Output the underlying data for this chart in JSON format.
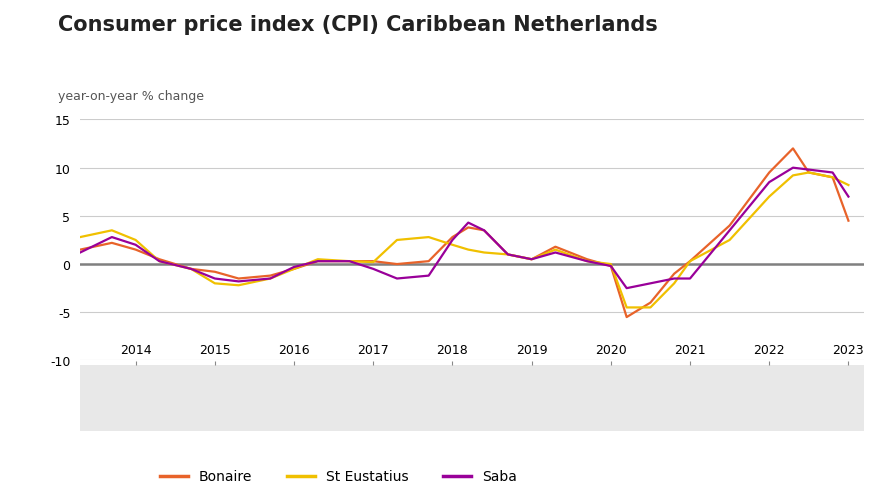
{
  "title": "Consumer price index (CPI) Caribbean Netherlands",
  "subtitle": "year-on-year % change",
  "ylim": [
    -10,
    15
  ],
  "yticks": [
    -10,
    -5,
    0,
    5,
    10,
    15
  ],
  "background_color": "#ffffff",
  "plot_bg_color": "#ffffff",
  "footer_bg_color": "#e8e8e8",
  "grid_color": "#cccccc",
  "zero_line_color": "#808080",
  "title_fontsize": 15,
  "subtitle_fontsize": 9,
  "series": {
    "Bonaire": {
      "color": "#e8632a",
      "x": [
        2013.3,
        2013.7,
        2014.0,
        2014.3,
        2014.7,
        2015.0,
        2015.3,
        2015.7,
        2016.0,
        2016.3,
        2016.7,
        2017.0,
        2017.3,
        2017.7,
        2018.0,
        2018.2,
        2018.4,
        2018.7,
        2019.0,
        2019.3,
        2019.7,
        2020.0,
        2020.2,
        2020.5,
        2020.8,
        2021.0,
        2021.5,
        2022.0,
        2022.3,
        2022.5,
        2022.8,
        2023.0
      ],
      "y": [
        1.5,
        2.2,
        1.5,
        0.5,
        -0.5,
        -0.8,
        -1.5,
        -1.2,
        -0.5,
        0.3,
        0.3,
        0.3,
        0.0,
        0.3,
        2.8,
        3.8,
        3.5,
        1.0,
        0.5,
        1.8,
        0.5,
        -0.2,
        -5.5,
        -4.0,
        -1.0,
        0.3,
        4.0,
        9.5,
        12.0,
        9.5,
        9.0,
        4.5
      ]
    },
    "St Eustatius": {
      "color": "#f0c000",
      "x": [
        2013.3,
        2013.7,
        2014.0,
        2014.3,
        2014.7,
        2015.0,
        2015.3,
        2015.7,
        2016.0,
        2016.3,
        2016.7,
        2017.0,
        2017.3,
        2017.7,
        2018.0,
        2018.2,
        2018.4,
        2018.7,
        2019.0,
        2019.3,
        2019.7,
        2020.0,
        2020.2,
        2020.5,
        2020.8,
        2021.0,
        2021.5,
        2022.0,
        2022.3,
        2022.5,
        2022.8,
        2023.0
      ],
      "y": [
        2.8,
        3.5,
        2.5,
        0.3,
        -0.5,
        -2.0,
        -2.2,
        -1.5,
        -0.5,
        0.5,
        0.3,
        0.2,
        2.5,
        2.8,
        2.0,
        1.5,
        1.2,
        1.0,
        0.5,
        1.5,
        0.3,
        0.0,
        -4.5,
        -4.5,
        -2.0,
        0.3,
        2.5,
        7.0,
        9.2,
        9.5,
        9.0,
        8.2
      ]
    },
    "Saba": {
      "color": "#990099",
      "x": [
        2013.3,
        2013.7,
        2014.0,
        2014.3,
        2014.7,
        2015.0,
        2015.3,
        2015.7,
        2016.0,
        2016.3,
        2016.7,
        2017.0,
        2017.3,
        2017.7,
        2018.0,
        2018.2,
        2018.4,
        2018.7,
        2019.0,
        2019.3,
        2019.7,
        2020.0,
        2020.2,
        2020.5,
        2020.8,
        2021.0,
        2021.5,
        2022.0,
        2022.3,
        2022.5,
        2022.8,
        2023.0
      ],
      "y": [
        1.2,
        2.8,
        2.0,
        0.3,
        -0.5,
        -1.5,
        -1.8,
        -1.5,
        -0.3,
        0.3,
        0.3,
        -0.5,
        -1.5,
        -1.2,
        2.5,
        4.3,
        3.5,
        1.0,
        0.5,
        1.2,
        0.3,
        -0.2,
        -2.5,
        -2.0,
        -1.5,
        -1.5,
        3.5,
        8.5,
        10.0,
        9.8,
        9.5,
        7.0
      ]
    }
  },
  "xlim": [
    2013.3,
    2023.2
  ],
  "xtick_positions": [
    2014,
    2015,
    2016,
    2017,
    2018,
    2019,
    2020,
    2021,
    2022,
    2023
  ],
  "xtick_labels": [
    "2014",
    "2015",
    "2016",
    "2017",
    "2018",
    "2019",
    "2020",
    "2021",
    "2022",
    "2023"
  ],
  "legend_labels": [
    "Bonaire",
    "St Eustatius",
    "Saba"
  ],
  "legend_colors": [
    "#e8632a",
    "#f0c000",
    "#990099"
  ]
}
